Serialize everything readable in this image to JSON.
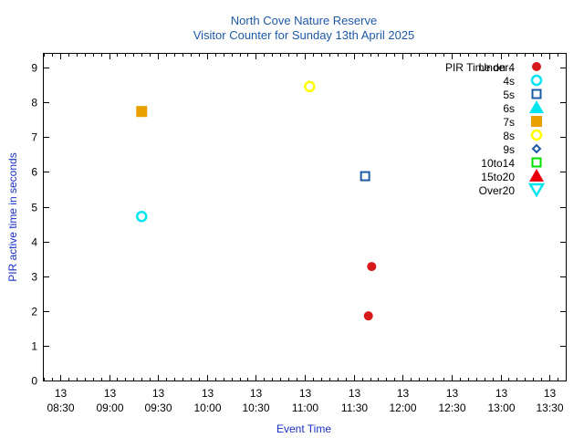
{
  "chart_data": {
    "type": "scatter",
    "title": "North Cove Nature Reserve",
    "subtitle": "Visitor Counter for Sunday 13th April 2025",
    "xlabel": "Event Time",
    "ylabel": "PIR active time in seconds",
    "xlim": [
      "08:20",
      "13:40"
    ],
    "ylim": [
      0,
      9.4
    ],
    "yticks": [
      0,
      1,
      2,
      3,
      4,
      5,
      6,
      7,
      8,
      9
    ],
    "xticks": [
      {
        "day": "13",
        "time": "08:30"
      },
      {
        "day": "13",
        "time": "09:00"
      },
      {
        "day": "13",
        "time": "09:30"
      },
      {
        "day": "13",
        "time": "10:00"
      },
      {
        "day": "13",
        "time": "10:30"
      },
      {
        "day": "13",
        "time": "11:00"
      },
      {
        "day": "13",
        "time": "11:30"
      },
      {
        "day": "13",
        "time": "12:00"
      },
      {
        "day": "13",
        "time": "12:30"
      },
      {
        "day": "13",
        "time": "13:00"
      },
      {
        "day": "13",
        "time": "13:30"
      }
    ],
    "legend_title": "PIR Time on ..",
    "legend_placement": "top-right",
    "grid": false,
    "series": [
      {
        "name": "Under4",
        "marker": "circle-filled",
        "color": "#d7191c",
        "points": [
          {
            "x": "11:39",
            "y": 1.86
          },
          {
            "x": "11:41",
            "y": 3.28
          }
        ]
      },
      {
        "name": "4s",
        "marker": "circle-open",
        "color": "#00e5ee",
        "points": [
          {
            "x": "09:20",
            "y": 4.72
          }
        ]
      },
      {
        "name": "5s",
        "marker": "square-open",
        "color": "#1f5aa6",
        "points": [
          {
            "x": "11:37",
            "y": 5.88
          }
        ]
      },
      {
        "name": "6s",
        "marker": "triangle-up-filled",
        "color": "#00e5ee",
        "points": []
      },
      {
        "name": "7s",
        "marker": "square-filled",
        "color": "#e8a000",
        "points": [
          {
            "x": "09:20",
            "y": 7.74
          }
        ]
      },
      {
        "name": "8s",
        "marker": "circle-open",
        "color": "#ffff00",
        "points": [
          {
            "x": "11:03",
            "y": 8.46
          }
        ]
      },
      {
        "name": "9s",
        "marker": "diamond-open",
        "color": "#1f5aa6",
        "points": []
      },
      {
        "name": "10to14",
        "marker": "square-open",
        "color": "#00e000",
        "points": []
      },
      {
        "name": "15to20",
        "marker": "triangle-up-filled",
        "color": "#e8000b",
        "points": []
      },
      {
        "name": "Over20",
        "marker": "triangle-down-open",
        "color": "#00e5ee",
        "points": []
      }
    ]
  }
}
